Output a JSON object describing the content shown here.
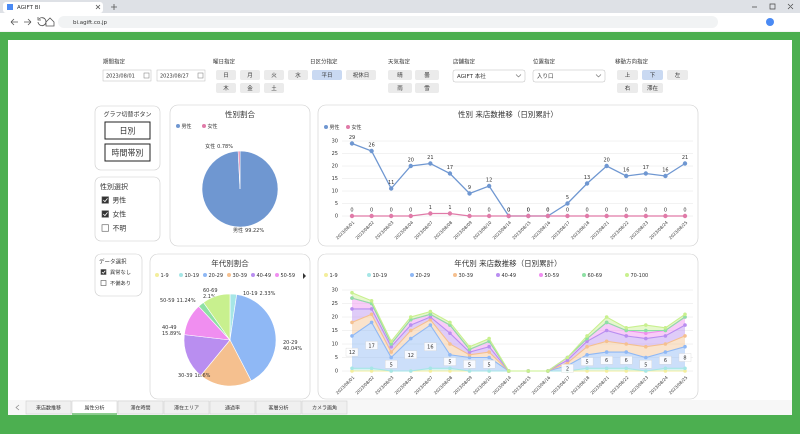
{
  "browser": {
    "tab_title": "AGIFT BI",
    "url": "bi.agift.co.jp"
  },
  "filters": {
    "period": {
      "label": "期間指定",
      "start": "2023/08/01",
      "end": "2023/08/27"
    },
    "weekday": {
      "label": "曜日指定",
      "options": [
        {
          "label": "日",
          "active": false
        },
        {
          "label": "月",
          "active": false
        },
        {
          "label": "火",
          "active": false
        },
        {
          "label": "水",
          "active": false
        },
        {
          "label": "木",
          "active": false
        },
        {
          "label": "金",
          "active": false
        },
        {
          "label": "土",
          "active": false
        }
      ]
    },
    "day_type": {
      "label": "日区分指定",
      "options": [
        {
          "label": "平日",
          "active": true
        },
        {
          "label": "祝休日",
          "active": false
        }
      ]
    },
    "weather": {
      "label": "天気指定",
      "options": [
        {
          "label": "晴",
          "active": false
        },
        {
          "label": "曇",
          "active": false
        },
        {
          "label": "雨",
          "active": false
        },
        {
          "label": "雪",
          "active": false
        }
      ]
    },
    "store": {
      "label": "店舗指定",
      "value": "AGIFT 本社"
    },
    "position": {
      "label": "位置指定",
      "value": "入り口"
    },
    "direction": {
      "label": "移動方向指定",
      "options": [
        {
          "label": "上",
          "active": false
        },
        {
          "label": "下",
          "active": true
        },
        {
          "label": "左",
          "active": false
        },
        {
          "label": "右",
          "active": false
        },
        {
          "label": "滞在",
          "active": false
        }
      ]
    }
  },
  "sidebar": {
    "graph_switch": {
      "title": "グラフ切替ボタン",
      "buttons": [
        "日別",
        "時間帯別"
      ]
    },
    "gender_select": {
      "title": "性別選択",
      "options": [
        {
          "label": "男性",
          "checked": true
        },
        {
          "label": "女性",
          "checked": true
        },
        {
          "label": "不明",
          "checked": false
        }
      ]
    },
    "data_select": {
      "title": "データ選択",
      "options": [
        {
          "label": "異常なし",
          "checked": true
        },
        {
          "label": "不備あり",
          "checked": false
        }
      ]
    }
  },
  "gender_pie": {
    "type": "pie",
    "title": "性別割合",
    "categories": [
      "男性",
      "女性"
    ],
    "values": [
      99.22,
      0.78
    ],
    "value_labels": [
      "99.22%",
      "0.78%"
    ],
    "colors": [
      "#6f97d1",
      "#e07aa8"
    ]
  },
  "gender_line": {
    "type": "line",
    "title": "性別 来店数推移（日別累計）",
    "x": [
      "2023/08/01",
      "2023/08/02",
      "2023/08/03",
      "2023/08/04",
      "2023/08/07",
      "2023/08/08",
      "2023/08/09",
      "2023/08/10",
      "2023/08/14",
      "2023/08/15",
      "2023/08/16",
      "2023/08/17",
      "2023/08/18",
      "2023/08/21",
      "2023/08/22",
      "2023/08/23",
      "2023/08/24",
      "2023/08/25"
    ],
    "series": [
      {
        "name": "男性",
        "color": "#6f97d1",
        "values": [
          29,
          26,
          11,
          20,
          21,
          17,
          9,
          12,
          0,
          0,
          0,
          5,
          13,
          20,
          16,
          17,
          16,
          21
        ]
      },
      {
        "name": "女性",
        "color": "#e07aa8",
        "values": [
          0,
          0,
          0,
          0,
          1,
          1,
          0,
          0,
          0,
          0,
          0,
          0,
          0,
          0,
          0,
          0,
          0,
          0
        ]
      }
    ],
    "ylim": [
      0,
      30
    ],
    "yticks": [
      0,
      5,
      10,
      15,
      20,
      25,
      30
    ],
    "grid": true
  },
  "age_pie": {
    "type": "pie",
    "title": "年代別割合",
    "categories": [
      "1-9",
      "10-19",
      "20-29",
      "30-39",
      "40-49",
      "50-59",
      "60-69",
      "70-100"
    ],
    "values": [
      0,
      2.33,
      40.04,
      18.6,
      15.89,
      11.24,
      2.1,
      9.8
    ],
    "value_labels": [
      null,
      "2.33%",
      "40.04%",
      "18.6%",
      "15.89%",
      "11.24%",
      "2.1%",
      null
    ],
    "colors": [
      "#f3ee9c",
      "#a6e6e6",
      "#8fb8f5",
      "#f5c08f",
      "#b98ef0",
      "#f08ef0",
      "#8ee0a4",
      "#c8f08e"
    ]
  },
  "age_area": {
    "type": "stacked_area",
    "title": "年代別 来店数推移（日別累計）",
    "x": [
      "2023/08/01",
      "2023/08/02",
      "2023/08/03",
      "2023/08/04",
      "2023/08/07",
      "2023/08/08",
      "2023/08/09",
      "2023/08/10",
      "2023/08/14",
      "2023/08/15",
      "2023/08/16",
      "2023/08/17",
      "2023/08/18",
      "2023/08/21",
      "2023/08/22",
      "2023/08/23",
      "2023/08/24",
      "2023/08/25"
    ],
    "series": [
      {
        "name": "1-9",
        "color": "#f3ee9c",
        "values": [
          0,
          0,
          0,
          0,
          0,
          0,
          0,
          0,
          0,
          0,
          0,
          0,
          0,
          0,
          0,
          0,
          0,
          0
        ]
      },
      {
        "name": "10-19",
        "color": "#a6e6e6",
        "values": [
          1,
          1,
          0,
          0,
          1,
          1,
          0,
          0,
          0,
          0,
          0,
          0,
          1,
          1,
          1,
          0,
          1,
          1
        ]
      },
      {
        "name": "20-29",
        "color": "#8fb8f5",
        "values": [
          12,
          17,
          5,
          12,
          16,
          5,
          5,
          5,
          0,
          0,
          0,
          2,
          5,
          6,
          6,
          5,
          6,
          8
        ]
      },
      {
        "name": "30-39",
        "color": "#f5c08f",
        "values": [
          5,
          3,
          2,
          3,
          2,
          4,
          1,
          2,
          0,
          0,
          0,
          1,
          3,
          4,
          3,
          4,
          3,
          4
        ]
      },
      {
        "name": "40-49",
        "color": "#b98ef0",
        "values": [
          5,
          2,
          2,
          2,
          1,
          4,
          1,
          2,
          0,
          0,
          0,
          1,
          2,
          4,
          3,
          3,
          3,
          4
        ]
      },
      {
        "name": "50-59",
        "color": "#f08ef0",
        "values": [
          4,
          2,
          1,
          2,
          1,
          3,
          1,
          2,
          0,
          0,
          0,
          1,
          1,
          3,
          2,
          2,
          2,
          3
        ]
      },
      {
        "name": "60-69",
        "color": "#8ee0a4",
        "values": [
          0,
          0,
          0,
          0,
          0,
          0,
          0,
          0,
          0,
          0,
          0,
          0,
          0,
          0,
          0,
          1,
          0,
          0
        ]
      },
      {
        "name": "70-100",
        "color": "#c8f08e",
        "values": [
          2,
          1,
          1,
          1,
          1,
          1,
          1,
          1,
          0,
          0,
          0,
          0,
          1,
          2,
          1,
          2,
          1,
          1
        ]
      }
    ],
    "labelled_series": 2,
    "ylim": [
      0,
      30
    ],
    "yticks": [
      0,
      5,
      10,
      15,
      20,
      25,
      30
    ],
    "grid": true
  },
  "bottom_tabs": [
    {
      "label": "来店数推移",
      "active": false
    },
    {
      "label": "属性分析",
      "active": true
    },
    {
      "label": "滞在時間",
      "active": false
    },
    {
      "label": "滞在エリア",
      "active": false
    },
    {
      "label": "通過率",
      "active": false
    },
    {
      "label": "客層分析",
      "active": false
    },
    {
      "label": "カメラ画角",
      "active": false
    }
  ]
}
